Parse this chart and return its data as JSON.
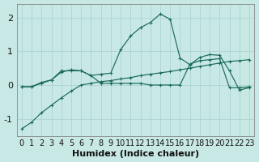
{
  "bg_color": "#c8e8e5",
  "plot_bg_color": "#c8e8e5",
  "line_color": "#1a6b5a",
  "grid_color": "#aed4d0",
  "xlabel": "Humidex (Indice chaleur)",
  "xlabel_fontsize": 8,
  "tick_fontsize": 7,
  "ylim": [
    -1.5,
    2.4
  ],
  "xlim": [
    -0.5,
    23.5
  ],
  "yticks": [
    -1,
    0,
    1,
    2
  ],
  "xticks": [
    0,
    1,
    2,
    3,
    4,
    5,
    6,
    7,
    8,
    9,
    10,
    11,
    12,
    13,
    14,
    15,
    16,
    17,
    18,
    19,
    20,
    21,
    22,
    23
  ],
  "line_diagonal_x": [
    0,
    1,
    2,
    3,
    4,
    5,
    6,
    7,
    8,
    9,
    10,
    11,
    12,
    13,
    14,
    15,
    16,
    17,
    18,
    19,
    20,
    21,
    22,
    23
  ],
  "line_diagonal_y": [
    -1.3,
    -1.1,
    -0.82,
    -0.6,
    -0.38,
    -0.18,
    0.0,
    0.05,
    0.1,
    0.13,
    0.18,
    0.22,
    0.28,
    0.32,
    0.36,
    0.4,
    0.45,
    0.5,
    0.55,
    0.6,
    0.65,
    0.7,
    0.72,
    0.75
  ],
  "line_peak_x": [
    0,
    1,
    2,
    3,
    4,
    5,
    6,
    7,
    8,
    9,
    10,
    11,
    12,
    13,
    14,
    15,
    16,
    17,
    18,
    19,
    20,
    21,
    22,
    23
  ],
  "line_peak_y": [
    -0.05,
    -0.05,
    0.05,
    0.15,
    0.42,
    0.42,
    0.42,
    0.28,
    0.32,
    0.35,
    1.05,
    1.45,
    1.7,
    1.85,
    2.1,
    1.95,
    0.8,
    0.6,
    0.82,
    0.9,
    0.88,
    0.42,
    -0.15,
    -0.08
  ],
  "line_flat_x": [
    0,
    1,
    2,
    3,
    4,
    5,
    6,
    7,
    8,
    9,
    10,
    11,
    12,
    13,
    14,
    15,
    16,
    17,
    18,
    19,
    20,
    21,
    22,
    23
  ],
  "line_flat_y": [
    -0.05,
    -0.05,
    0.08,
    0.15,
    0.38,
    0.45,
    0.42,
    0.28,
    0.05,
    0.05,
    0.05,
    0.05,
    0.05,
    0.0,
    0.0,
    0.0,
    0.0,
    0.62,
    0.72,
    0.75,
    0.78,
    -0.08,
    -0.08,
    -0.05
  ]
}
